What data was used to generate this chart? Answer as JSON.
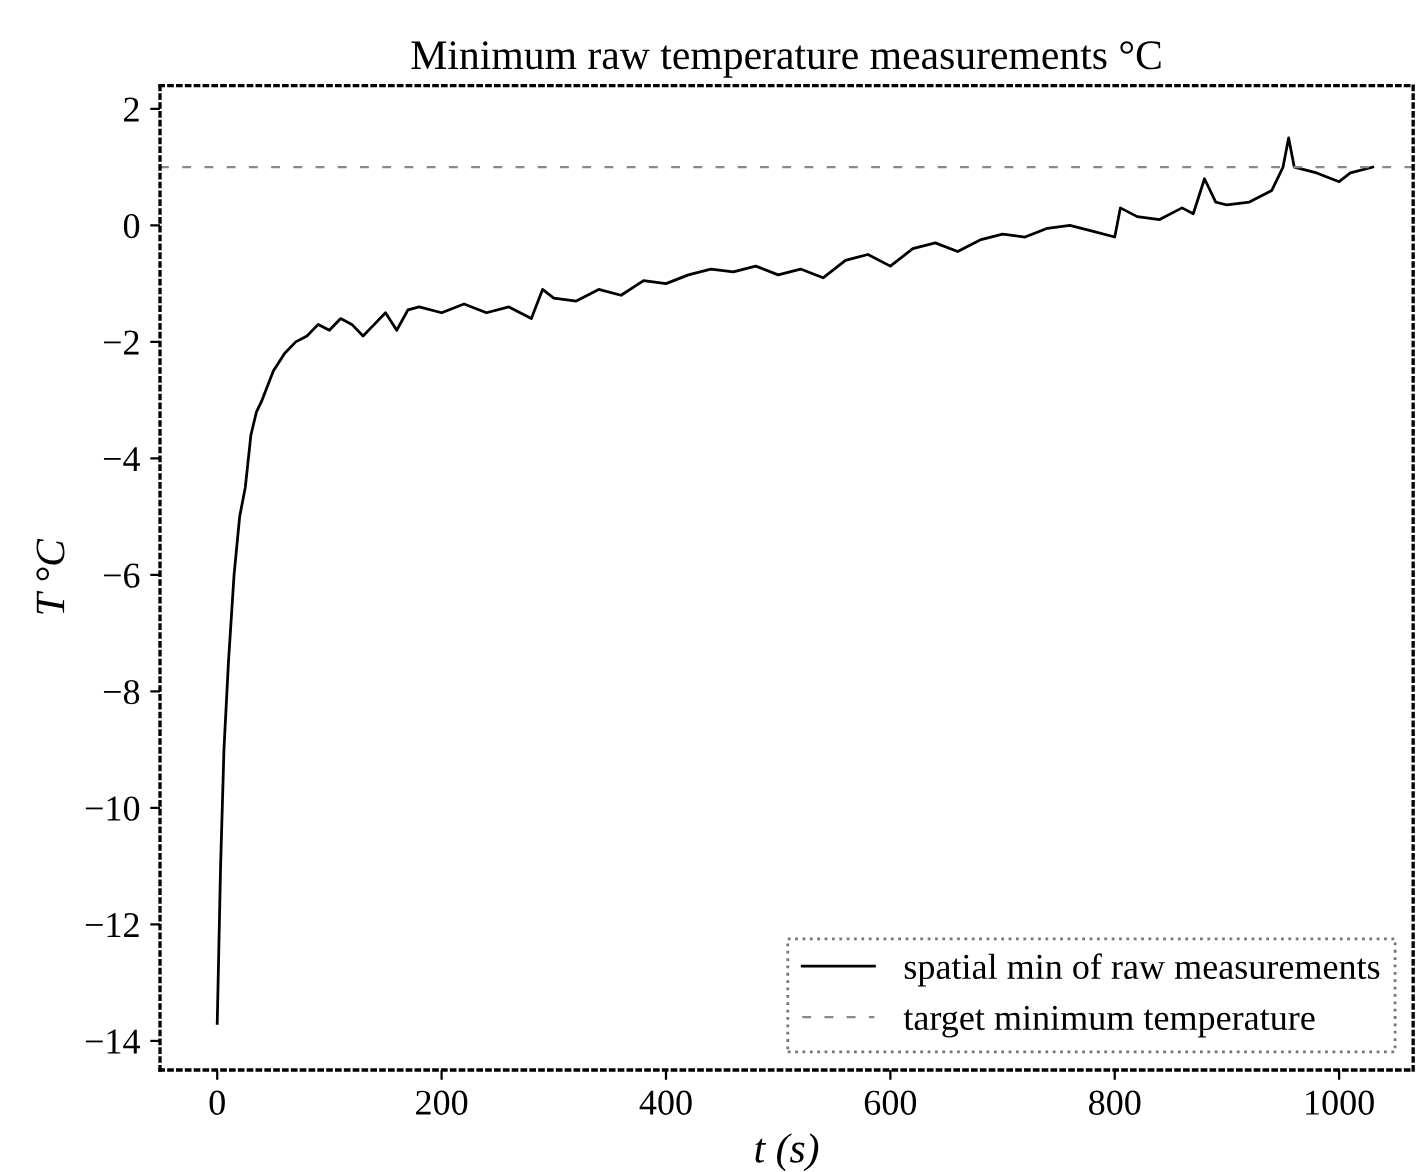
{
  "chart_data": {
    "type": "line",
    "title": "Minimum raw temperature measurements °C",
    "xlabel": "t (s)",
    "ylabel": "T °C",
    "xlim": [
      -51,
      1066
    ],
    "ylim": [
      -14.5,
      2.4
    ],
    "xticks": [
      0,
      200,
      400,
      600,
      800,
      1000
    ],
    "yticks": [
      -14,
      -12,
      -10,
      -8,
      -6,
      -4,
      -2,
      0,
      2
    ],
    "series": [
      {
        "name": "spatial min of raw measurements",
        "color": "#000000",
        "x": [
          0,
          3,
          6,
          10,
          15,
          20,
          25,
          30,
          35,
          40,
          50,
          60,
          70,
          80,
          90,
          100,
          110,
          120,
          130,
          140,
          150,
          160,
          170,
          180,
          200,
          220,
          240,
          260,
          280,
          290,
          300,
          320,
          340,
          360,
          380,
          400,
          420,
          440,
          460,
          480,
          500,
          520,
          540,
          560,
          580,
          600,
          620,
          640,
          660,
          680,
          700,
          720,
          740,
          760,
          780,
          800,
          805,
          820,
          840,
          860,
          870,
          880,
          890,
          900,
          920,
          940,
          950,
          955,
          960,
          980,
          1000,
          1010,
          1030
        ],
        "values": [
          -13.7,
          -11,
          -9,
          -7.5,
          -6,
          -5,
          -4.5,
          -3.6,
          -3.2,
          -3.0,
          -2.5,
          -2.2,
          -2.0,
          -1.9,
          -1.7,
          -1.8,
          -1.6,
          -1.7,
          -1.9,
          -1.7,
          -1.5,
          -1.8,
          -1.45,
          -1.4,
          -1.5,
          -1.35,
          -1.5,
          -1.4,
          -1.6,
          -1.1,
          -1.25,
          -1.3,
          -1.1,
          -1.2,
          -0.95,
          -1.0,
          -0.85,
          -0.75,
          -0.8,
          -0.7,
          -0.85,
          -0.75,
          -0.9,
          -0.6,
          -0.5,
          -0.7,
          -0.4,
          -0.3,
          -0.45,
          -0.25,
          -0.15,
          -0.2,
          -0.05,
          0.0,
          -0.1,
          -0.2,
          0.3,
          0.15,
          0.1,
          0.3,
          0.2,
          0.8,
          0.4,
          0.35,
          0.4,
          0.6,
          1.0,
          1.5,
          1.0,
          0.9,
          0.75,
          0.9,
          1.0
        ]
      }
    ],
    "ref_lines": [
      {
        "axis": "y",
        "value": 1,
        "label": "target minimum temperature",
        "color": "#888888",
        "line_style": "dashed"
      }
    ],
    "legend": "lower right",
    "grid": false
  }
}
